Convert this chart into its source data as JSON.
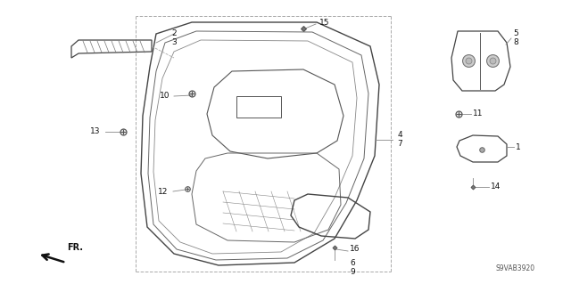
{
  "bg_color": "#ffffff",
  "diagram_code": "S9VAB3920",
  "line_color": "#444444",
  "dash_color": "#aaaaaa",
  "label_color": "#111111",
  "label_fs": 6.5,
  "small_fs": 5.8
}
